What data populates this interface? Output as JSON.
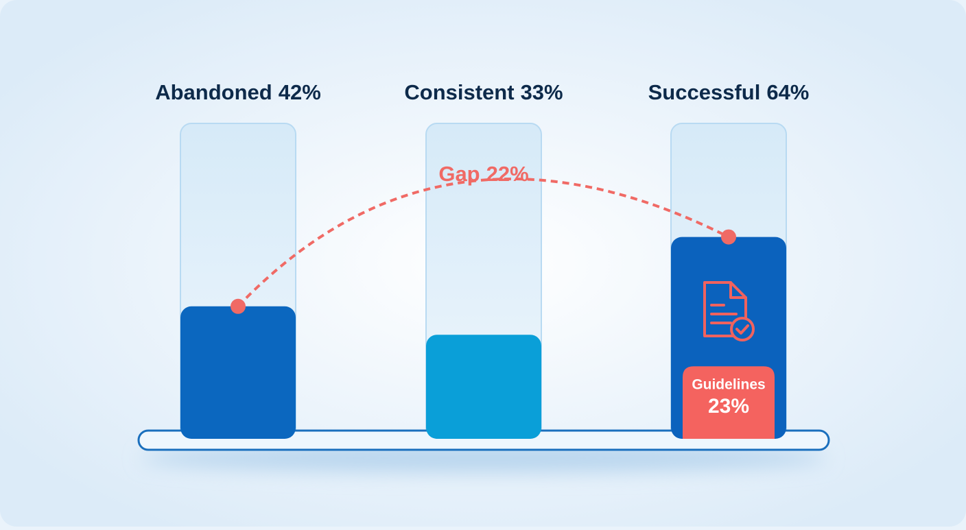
{
  "chart_data": {
    "type": "bar",
    "categories": [
      "Abandoned",
      "Consistent",
      "Successful"
    ],
    "values": [
      42,
      33,
      64
    ],
    "value_labels": [
      "42%",
      "33%",
      "64%"
    ],
    "colors": [
      "#0b67bf",
      "#0a9fd8",
      "#0b62bd"
    ],
    "ylim": [
      0,
      100
    ],
    "gap": {
      "label": "Gap",
      "value": 22,
      "value_label": "22%",
      "color": "#f06a65"
    },
    "highlight": {
      "label": "Guidelines",
      "value": 23,
      "value_label": "23%",
      "color": "#f4635f"
    }
  }
}
